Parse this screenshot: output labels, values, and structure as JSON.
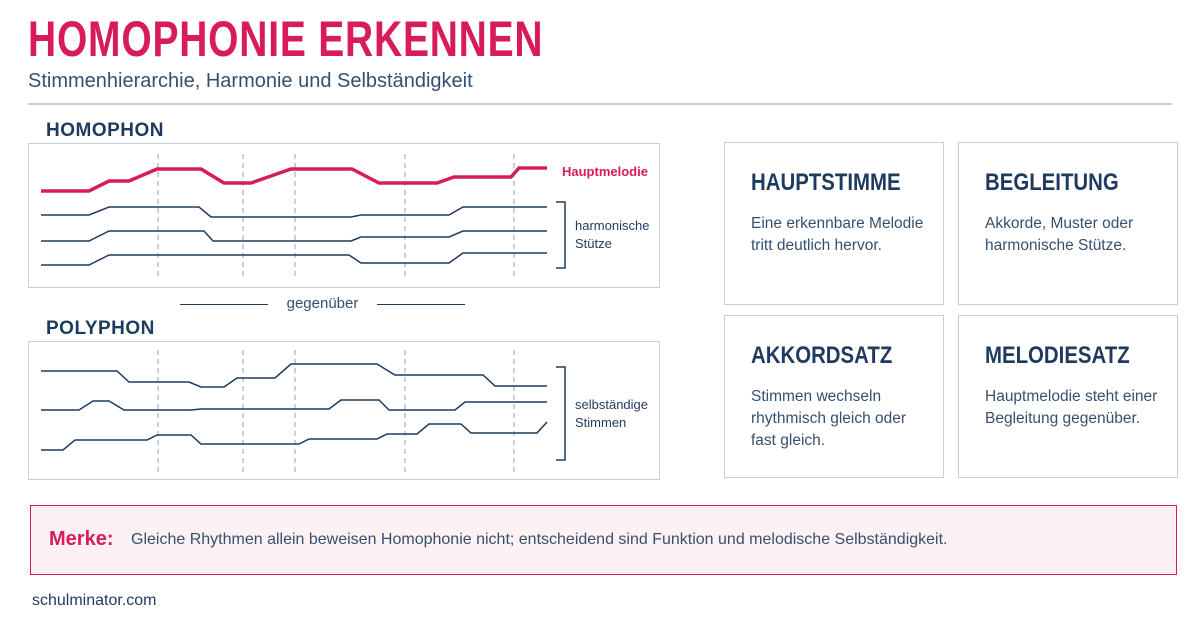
{
  "header": {
    "title": "HOMOPHONIE ERKENNEN",
    "subtitle": "Stimmenhierarchie, Harmonie und Selbständigkeit"
  },
  "homophon": {
    "label": "HOMOPHON",
    "melody_label": "Hauptmelodie",
    "support_label_line1": "harmonische",
    "support_label_line2": "Stütze"
  },
  "divider": {
    "label": "gegenüber"
  },
  "polyphon": {
    "label": "POLYPHON",
    "voices_label_line1": "selbständige",
    "voices_label_line2": "Stimmen"
  },
  "cards": [
    {
      "title": "HAUPTSTIMME",
      "text": "Eine erkennbare Melodie tritt deutlich hervor."
    },
    {
      "title": "BEGLEITUNG",
      "text": "Akkorde, Muster oder harmonische Stütze."
    },
    {
      "title": "AKKORDSATZ",
      "text": "Stimmen wechseln rhythmisch gleich oder fast gleich."
    },
    {
      "title": "MELODIESATZ",
      "text": "Hauptmelodie steht einer Begleitung gegenüber."
    }
  ],
  "merke": {
    "label": "Merke:",
    "text": "Gleiche Rhythmen allein beweisen Homophonie nicht; entscheidend sind Funktion und melodische Selbständigkeit."
  },
  "footer": {
    "site": "schulminator.com"
  },
  "colors": {
    "accent": "#d81b5c",
    "navy": "#1f3a5f",
    "border": "#c8ced6"
  }
}
